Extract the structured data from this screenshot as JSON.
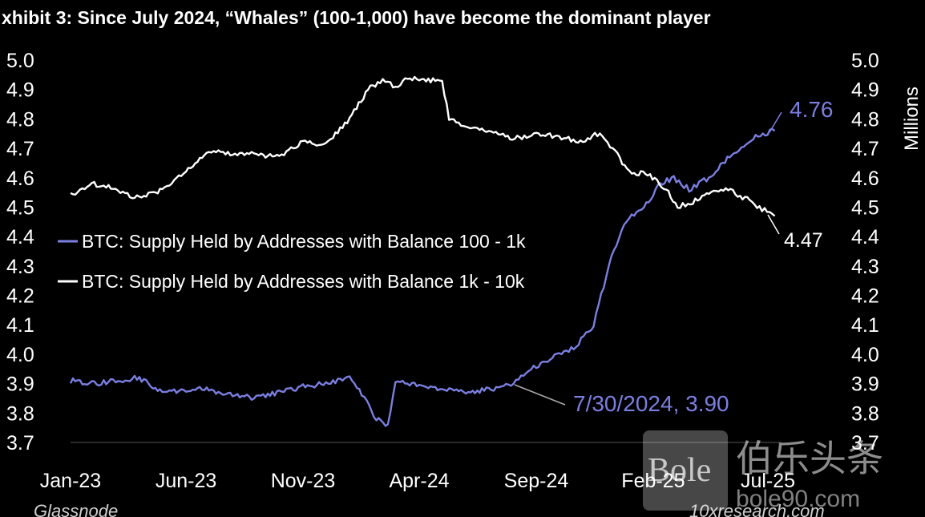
{
  "chart_data": {
    "type": "line",
    "title": "xhibit 3: Since July 2024, “Whales” (100-1,000) have become the dominant player",
    "ylabel_right": "Millions",
    "ylim": [
      3.7,
      5.0
    ],
    "yticks_left": [
      "5.0",
      "4.9",
      "4.8",
      "4.7",
      "4.6",
      "4.5",
      "4.4",
      "4.3",
      "4.2",
      "4.1",
      "4.0",
      "3.9",
      "3.8",
      "3.7"
    ],
    "yticks_right": [
      "5.0",
      "4.9",
      "4.8",
      "4.7",
      "4.6",
      "4.5",
      "4.4",
      "4.3",
      "4.2",
      "4.1",
      "4.0",
      "3.9",
      "3.8",
      "3.7"
    ],
    "xticks": [
      "Jan-23",
      "Jun-23",
      "Nov-23",
      "Apr-24",
      "Sep-24",
      "Feb-25",
      "Jul-25"
    ],
    "series": [
      {
        "name": "BTC: Supply Held by Addresses with Balance 100 - 1k",
        "color": "#7b7fe0",
        "points": [
          [
            "2023-01-01",
            3.91
          ],
          [
            "2023-02-01",
            3.9
          ],
          [
            "2023-03-01",
            3.91
          ],
          [
            "2023-04-01",
            3.92
          ],
          [
            "2023-05-01",
            3.87
          ],
          [
            "2023-06-01",
            3.88
          ],
          [
            "2023-07-01",
            3.88
          ],
          [
            "2023-08-01",
            3.86
          ],
          [
            "2023-09-01",
            3.85
          ],
          [
            "2023-10-01",
            3.87
          ],
          [
            "2023-11-01",
            3.89
          ],
          [
            "2023-12-01",
            3.9
          ],
          [
            "2024-01-01",
            3.92
          ],
          [
            "2024-01-20",
            3.85
          ],
          [
            "2024-02-05",
            3.78
          ],
          [
            "2024-02-20",
            3.76
          ],
          [
            "2024-03-01",
            3.91
          ],
          [
            "2024-04-01",
            3.89
          ],
          [
            "2024-05-01",
            3.88
          ],
          [
            "2024-06-01",
            3.87
          ],
          [
            "2024-07-01",
            3.88
          ],
          [
            "2024-07-30",
            3.9
          ],
          [
            "2024-09-01",
            3.96
          ],
          [
            "2024-10-01",
            4.0
          ],
          [
            "2024-10-20",
            4.02
          ],
          [
            "2024-11-15",
            4.1
          ],
          [
            "2024-12-05",
            4.3
          ],
          [
            "2024-12-25",
            4.45
          ],
          [
            "2025-01-20",
            4.5
          ],
          [
            "2025-02-10",
            4.58
          ],
          [
            "2025-02-28",
            4.6
          ],
          [
            "2025-03-20",
            4.56
          ],
          [
            "2025-04-15",
            4.6
          ],
          [
            "2025-05-15",
            4.68
          ],
          [
            "2025-06-15",
            4.74
          ],
          [
            "2025-07-10",
            4.76
          ]
        ]
      },
      {
        "name": "BTC: Supply Held by Addresses with Balance 1k - 10k",
        "color": "#ffffff",
        "points": [
          [
            "2023-01-01",
            4.54
          ],
          [
            "2023-02-01",
            4.58
          ],
          [
            "2023-03-01",
            4.56
          ],
          [
            "2023-04-01",
            4.53
          ],
          [
            "2023-05-01",
            4.56
          ],
          [
            "2023-06-01",
            4.62
          ],
          [
            "2023-07-01",
            4.69
          ],
          [
            "2023-08-01",
            4.68
          ],
          [
            "2023-09-01",
            4.68
          ],
          [
            "2023-10-01",
            4.67
          ],
          [
            "2023-11-01",
            4.72
          ],
          [
            "2023-12-01",
            4.71
          ],
          [
            "2024-01-01",
            4.8
          ],
          [
            "2024-01-25",
            4.9
          ],
          [
            "2024-02-10",
            4.93
          ],
          [
            "2024-03-01",
            4.91
          ],
          [
            "2024-03-20",
            4.94
          ],
          [
            "2024-04-10",
            4.93
          ],
          [
            "2024-05-01",
            4.93
          ],
          [
            "2024-05-10",
            4.8
          ],
          [
            "2024-06-01",
            4.78
          ],
          [
            "2024-07-01",
            4.76
          ],
          [
            "2024-08-01",
            4.73
          ],
          [
            "2024-09-01",
            4.75
          ],
          [
            "2024-10-01",
            4.74
          ],
          [
            "2024-11-01",
            4.72
          ],
          [
            "2024-11-20",
            4.75
          ],
          [
            "2024-12-10",
            4.7
          ],
          [
            "2025-01-01",
            4.62
          ],
          [
            "2025-01-25",
            4.61
          ],
          [
            "2025-02-15",
            4.57
          ],
          [
            "2025-03-05",
            4.5
          ],
          [
            "2025-03-25",
            4.52
          ],
          [
            "2025-04-15",
            4.55
          ],
          [
            "2025-05-10",
            4.56
          ],
          [
            "2025-06-01",
            4.53
          ],
          [
            "2025-06-20",
            4.5
          ],
          [
            "2025-07-10",
            4.47
          ]
        ]
      }
    ],
    "annotations": [
      {
        "text": "4.76",
        "series": 0,
        "at": "2025-07-10",
        "value": 4.76
      },
      {
        "text": "4.47",
        "series": 1,
        "at": "2025-07-10",
        "value": 4.47
      },
      {
        "text": "7/30/2024, 3.90",
        "series": 0,
        "at": "2024-07-30",
        "value": 3.9
      }
    ],
    "legend_placement": "center-left",
    "source": "Glassnode",
    "credit": "10xresearch.com"
  },
  "watermark": {
    "logo_text": "Bole",
    "cn_text": "伯乐头条",
    "url": "bole90.com"
  }
}
